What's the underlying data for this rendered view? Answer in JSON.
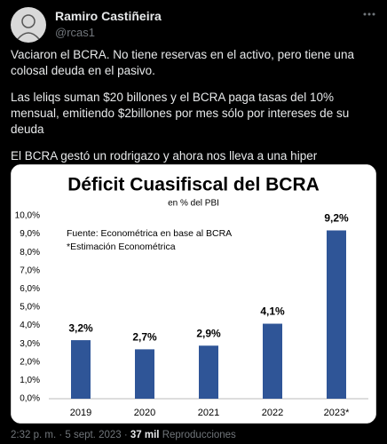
{
  "tweet": {
    "name": "Ramiro Castiñeira",
    "handle": "@rcas1",
    "paragraphs": [
      "Vaciaron el BCRA. No tiene reservas en el activo, pero tiene una colosal deuda en el pasivo.",
      "Las leliqs suman $20 billones y el BCRA paga tasas del 10% mensual, emitiendo $2billones por mes sólo por intereses de su deuda",
      "El BCRA gestó un rodrigazo y ahora nos lleva a una hiper"
    ],
    "timestamp": "2:32 p. m. · 5 sept. 2023 ·",
    "views": "37 mil",
    "views_label": "Reproducciones"
  },
  "chart_data": {
    "type": "bar",
    "title": "Déficit Cuasifiscal del BCRA",
    "subtitle": "en % del PBI",
    "annotations": [
      "Fuente: Econométrica en base al BCRA",
      "*Estimación Econométrica"
    ],
    "categories": [
      "2019",
      "2020",
      "2021",
      "2022",
      "2023*"
    ],
    "values": [
      3.2,
      2.7,
      2.9,
      4.1,
      9.2
    ],
    "value_labels": [
      "3,2%",
      "2,7%",
      "2,9%",
      "4,1%",
      "9,2%"
    ],
    "color": "#2f5597",
    "ylim": [
      0,
      10
    ],
    "yticks": [
      {
        "value": 0,
        "label": "0,0%"
      },
      {
        "value": 1,
        "label": "1,0%"
      },
      {
        "value": 2,
        "label": "2,0%"
      },
      {
        "value": 3,
        "label": "3,0%"
      },
      {
        "value": 4,
        "label": "4,0%"
      },
      {
        "value": 5,
        "label": "5,0%"
      },
      {
        "value": 6,
        "label": "6,0%"
      },
      {
        "value": 7,
        "label": "7,0%"
      },
      {
        "value": 8,
        "label": "8,0%"
      },
      {
        "value": 9,
        "label": "9,0%"
      },
      {
        "value": 10,
        "label": "10,0%"
      }
    ],
    "grid": false
  }
}
